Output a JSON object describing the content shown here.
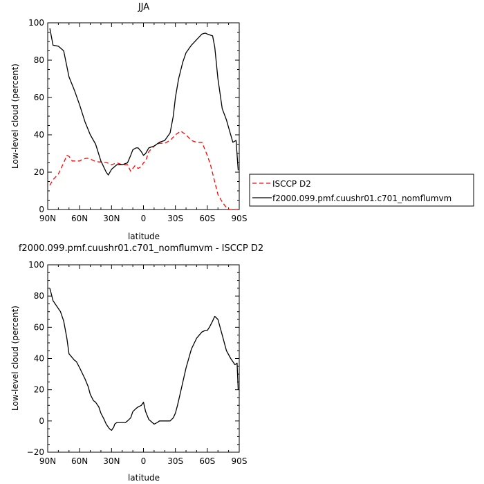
{
  "chart_data": [
    {
      "type": "line",
      "title": "JJA",
      "xlabel": "latitude",
      "ylabel": "Low-level cloud (percent)",
      "xlim": [
        90,
        -90
      ],
      "ylim": [
        0,
        100
      ],
      "xticks": [
        90,
        60,
        30,
        0,
        -30,
        -60,
        -90
      ],
      "xtick_labels": [
        "90N",
        "60N",
        "30N",
        "0",
        "30S",
        "60S",
        "90S"
      ],
      "yticks": [
        0,
        20,
        40,
        60,
        80,
        100
      ],
      "ytick_labels": [
        "0",
        "20",
        "40",
        "60",
        "80",
        "100"
      ],
      "legend": "right",
      "series": [
        {
          "name": "ISCCP D2",
          "color": "#ff0000",
          "dash": "dashed",
          "x": [
            88,
            85,
            80,
            75,
            72,
            70,
            67,
            63,
            60,
            57,
            53,
            50,
            46,
            42,
            38,
            34,
            30,
            25,
            20,
            15,
            12,
            8,
            5,
            2,
            0,
            -2,
            -5,
            -10,
            -15,
            -20,
            -25,
            -30,
            -35,
            -40,
            -45,
            -50,
            -55,
            -60,
            -63,
            -66,
            -70,
            -74,
            -78,
            -81,
            -84,
            -86,
            -88
          ],
          "y": [
            13,
            16,
            19,
            25,
            29,
            28.5,
            26,
            26,
            26,
            27,
            27.5,
            27,
            26,
            25.5,
            25.5,
            25,
            24,
            25,
            24,
            24,
            20.5,
            23.5,
            22,
            23,
            25,
            26,
            31,
            34,
            35.5,
            35.5,
            37,
            40,
            42,
            40,
            37,
            36,
            36,
            29,
            24,
            17,
            8,
            4,
            1,
            0,
            0,
            0,
            0
          ]
        },
        {
          "name": "f2000.099.pmf.cuushr01.c701_nomflumvm",
          "color": "#000000",
          "dash": "solid",
          "x": [
            88,
            85,
            80,
            75,
            70,
            65,
            60,
            55,
            50,
            45,
            40,
            35,
            33,
            30,
            27,
            25,
            20,
            15,
            12,
            10,
            7,
            5,
            2,
            0,
            -2,
            -5,
            -10,
            -15,
            -20,
            -25,
            -28,
            -30,
            -33,
            -37,
            -40,
            -45,
            -50,
            -55,
            -58,
            -60,
            -65,
            -67,
            -70,
            -74,
            -78,
            -81,
            -84,
            -87,
            -89
          ],
          "y": [
            97,
            88,
            87.5,
            85,
            71,
            64,
            56,
            47,
            40,
            35,
            26,
            20,
            18.5,
            21.5,
            23,
            24,
            24,
            25,
            29,
            32,
            33,
            33,
            31,
            29,
            30,
            33,
            34,
            36,
            37,
            41,
            50,
            60,
            70,
            79,
            84,
            88,
            91,
            94,
            94.5,
            94,
            93,
            87,
            70,
            54,
            48,
            42,
            36,
            37,
            21
          ]
        }
      ]
    },
    {
      "type": "line",
      "title": "f2000.099.pmf.cuushr01.c701_nomflumvm - ISCCP D2",
      "xlabel": "latitude",
      "ylabel": "Low-level cloud (percent)",
      "xlim": [
        90,
        -90
      ],
      "ylim": [
        -20,
        100
      ],
      "xticks": [
        90,
        60,
        30,
        0,
        -30,
        -60,
        -90
      ],
      "xtick_labels": [
        "90N",
        "60N",
        "30N",
        "0",
        "30S",
        "60S",
        "90S"
      ],
      "yticks": [
        -20,
        0,
        20,
        40,
        60,
        80,
        100
      ],
      "ytick_labels": [
        "−20",
        "0",
        "20",
        "40",
        "60",
        "80",
        "100"
      ],
      "series": [
        {
          "color": "#000000",
          "dash": "solid",
          "x": [
            88,
            85,
            80,
            78,
            75,
            72,
            70,
            65,
            63,
            60,
            55,
            52,
            50,
            47,
            45,
            42,
            40,
            37,
            35,
            32,
            30,
            28,
            27,
            25,
            22,
            20,
            17,
            15,
            12,
            10,
            7,
            5,
            2,
            0,
            -2,
            -5,
            -10,
            -13,
            -15,
            -18,
            -20,
            -25,
            -28,
            -30,
            -32,
            -35,
            -40,
            -45,
            -50,
            -55,
            -58,
            -60,
            -62,
            -65,
            -67,
            -70,
            -74,
            -78,
            -82,
            -86,
            -88,
            -89
          ],
          "y": [
            85,
            77,
            72,
            70,
            64,
            53,
            43,
            39,
            38,
            34,
            27,
            22,
            17,
            13,
            12,
            9,
            5,
            1,
            -2,
            -5,
            -6,
            -4,
            -2,
            -1,
            -1,
            -1,
            -1,
            0,
            2,
            6,
            8,
            9,
            10,
            12,
            6,
            1,
            -2,
            -1,
            0,
            0,
            0,
            0,
            2,
            5,
            10,
            19,
            34,
            46,
            53,
            57,
            58,
            58,
            60,
            64,
            67,
            65,
            55,
            45,
            40,
            36,
            37,
            20
          ]
        }
      ]
    }
  ]
}
